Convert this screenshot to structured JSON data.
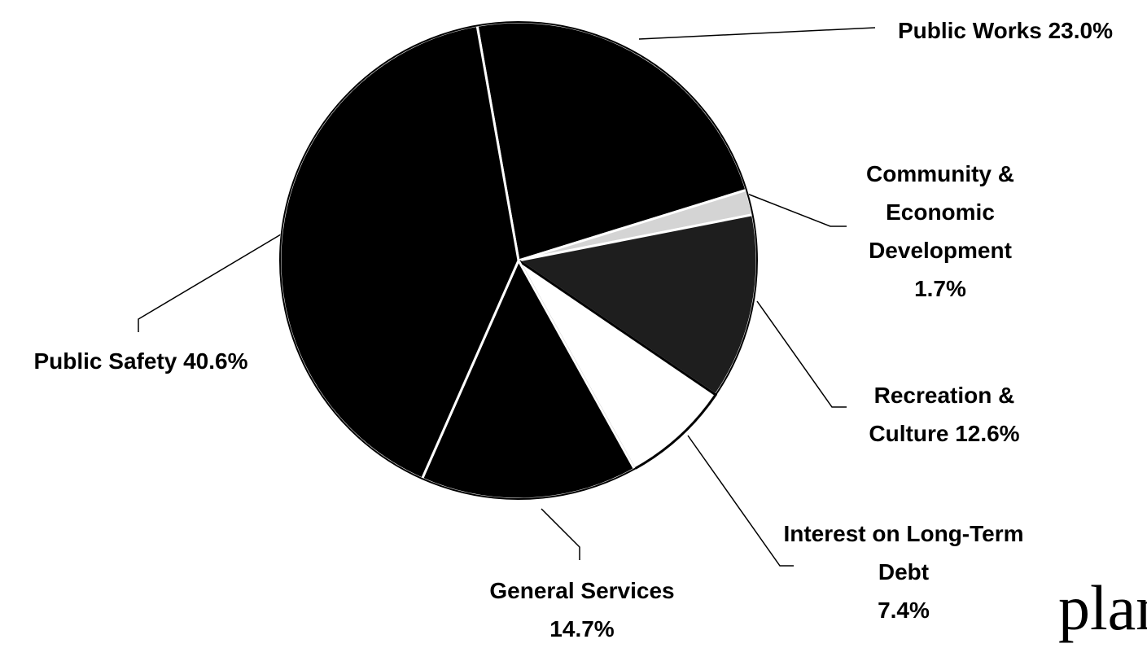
{
  "chart_data": {
    "type": "pie",
    "categories": [
      "Public Works",
      "Community & Economic Development",
      "Recreation & Culture",
      "Interest on Long-Term Debt",
      "General Services",
      "Public Safety"
    ],
    "values": [
      23.0,
      1.7,
      12.6,
      7.4,
      14.7,
      40.6
    ],
    "value_labels": [
      "23.0%",
      "1.7%",
      "12.6%",
      "7.4%",
      "14.7%",
      "40.6%"
    ],
    "colors": [
      "#000000",
      "#d4d4d4",
      "#1e1e1e",
      "#ffffff",
      "#000000",
      "#000000"
    ],
    "annotation": "plant"
  }
}
